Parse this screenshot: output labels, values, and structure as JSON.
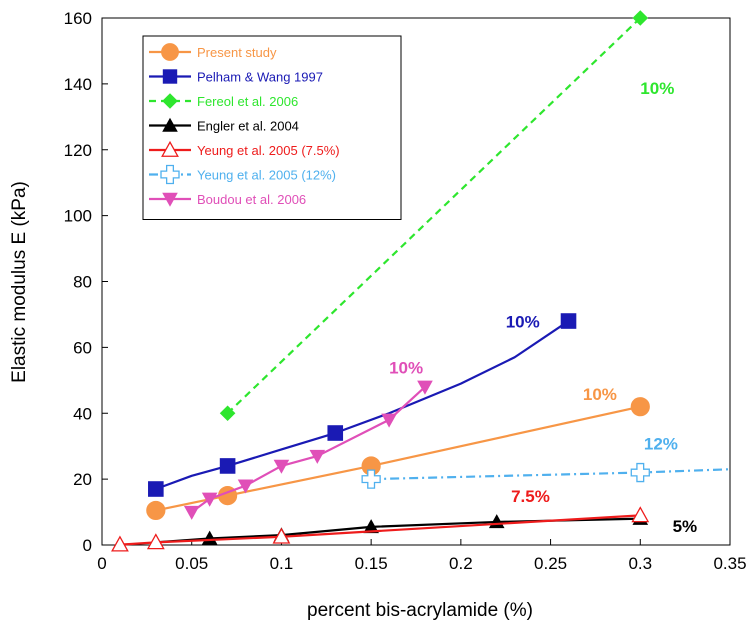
{
  "chart_data": {
    "type": "line",
    "xlabel": "percent bis-acrylamide (%)",
    "ylabel": "Elastic modulus E (kPa)",
    "xlim": [
      0,
      0.35
    ],
    "ylim": [
      0,
      160
    ],
    "xticks": [
      0,
      0.05,
      0.1,
      0.15,
      0.2,
      0.25,
      0.3,
      0.35
    ],
    "xtick_labels": [
      "0",
      "0.05",
      "0.1",
      "0.15",
      "0.2",
      "0.25",
      "0.3",
      "0.35"
    ],
    "yticks": [
      0,
      20,
      40,
      60,
      80,
      100,
      120,
      140,
      160
    ],
    "ytick_labels": [
      "0",
      "20",
      "40",
      "60",
      "80",
      "100",
      "120",
      "140",
      "160"
    ],
    "grid": false,
    "legend_position": "top-left",
    "series": [
      {
        "name": "Present study",
        "color": "#f79646",
        "marker": "circle",
        "dash": "solid",
        "x": [
          0.03,
          0.07,
          0.15,
          0.3
        ],
        "y": [
          10.5,
          15,
          24,
          42
        ]
      },
      {
        "name": "Pelham & Wang 1997",
        "color": "#1a1ab4",
        "marker": "square",
        "dash": "solid",
        "x": [
          0.03,
          0.07,
          0.13,
          0.26
        ],
        "y": [
          17,
          24,
          34,
          68
        ],
        "curve_x": [
          0.03,
          0.05,
          0.07,
          0.1,
          0.13,
          0.16,
          0.2,
          0.23,
          0.26
        ],
        "curve_y": [
          17,
          21,
          24,
          29,
          34,
          40,
          49,
          57,
          68
        ]
      },
      {
        "name": "Fereol et al. 2006",
        "color": "#2ee62e",
        "marker": "diamond",
        "dash": "dashed",
        "x": [
          0.07,
          0.3
        ],
        "y": [
          40,
          160
        ]
      },
      {
        "name": "Engler et al. 2004",
        "color": "#000000",
        "marker": "triangle",
        "dash": "solid",
        "x": [
          0.03,
          0.06,
          0.1,
          0.15,
          0.22,
          0.3
        ],
        "y": [
          0.8,
          2,
          3,
          5.5,
          7,
          8
        ]
      },
      {
        "name": "Yeung et al. 2005 (7.5%)",
        "color": "#ee1c1c",
        "marker": "triangle-open",
        "dash": "solid",
        "x": [
          0.01,
          0.03,
          0.1,
          0.3
        ],
        "y": [
          0.1,
          0.8,
          2.5,
          9
        ]
      },
      {
        "name": "Yeung et al. 2005 (12%)",
        "color": "#4fb0ee",
        "marker": "cross-open",
        "dash": "dashdot",
        "x": [
          0.15,
          0.3
        ],
        "y": [
          20,
          22
        ],
        "extend_to_x": 0.35,
        "extend_to_y": 23
      },
      {
        "name": "Boudou et al. 2006",
        "color": "#e04fb8",
        "marker": "triangle-down",
        "dash": "solid",
        "x": [
          0.05,
          0.06,
          0.08,
          0.1,
          0.12,
          0.16,
          0.18
        ],
        "y": [
          10,
          14,
          18,
          24,
          27,
          38,
          48
        ]
      }
    ],
    "annotations": [
      {
        "text": "10%",
        "color": "#2ee62e",
        "x": 0.3,
        "y": 137
      },
      {
        "text": "10%",
        "color": "#1a1ab4",
        "x": 0.225,
        "y": 66
      },
      {
        "text": "10%",
        "color": "#e04fb8",
        "x": 0.16,
        "y": 52
      },
      {
        "text": "10%",
        "color": "#f79646",
        "x": 0.268,
        "y": 44
      },
      {
        "text": "12%",
        "color": "#4fb0ee",
        "x": 0.302,
        "y": 29
      },
      {
        "text": "7.5%",
        "color": "#ee1c1c",
        "x": 0.228,
        "y": 13
      },
      {
        "text": "5%",
        "color": "#000000",
        "x": 0.318,
        "y": 4
      }
    ]
  }
}
